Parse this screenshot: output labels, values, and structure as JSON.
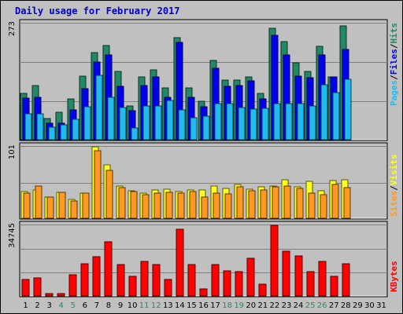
{
  "title": "Daily usage for February 2017",
  "colors": {
    "hits": "#228866",
    "files": "#0000ee",
    "pages": "#22bbee",
    "visits": "#ffff22",
    "sites": "#ff9922",
    "kbytes": "#ff0000",
    "weekend_day": "#2e8b57",
    "weekday": "#000000",
    "side_separator": "#000000"
  },
  "side_labels": {
    "top": [
      "Pages",
      "Files",
      "Hits"
    ],
    "mid": [
      "Sites",
      "Visits"
    ],
    "bottom": [
      "KBytes"
    ],
    "separator": "/"
  },
  "chart_data": [
    {
      "type": "bar",
      "name": "hits-files-pages",
      "ymax_label": "273",
      "ylim": [
        0,
        273
      ],
      "categories": [
        "1",
        "2",
        "3",
        "4",
        "5",
        "6",
        "7",
        "8",
        "9",
        "10",
        "11",
        "12",
        "13",
        "14",
        "15",
        "16",
        "17",
        "18",
        "19",
        "20",
        "21",
        "22",
        "23",
        "24",
        "25",
        "26",
        "27",
        "28",
        "29",
        "30",
        "31"
      ],
      "series": [
        {
          "name": "Hits",
          "values": [
            108,
            128,
            50,
            65,
            95,
            150,
            205,
            222,
            160,
            80,
            148,
            165,
            122,
            240,
            122,
            90,
            187,
            140,
            140,
            148,
            108,
            262,
            230,
            180,
            160,
            220,
            148,
            268,
            0,
            0,
            0
          ]
        },
        {
          "name": "Files",
          "values": [
            98,
            100,
            38,
            38,
            70,
            120,
            182,
            200,
            125,
            68,
            128,
            148,
            100,
            228,
            100,
            78,
            168,
            125,
            128,
            138,
            95,
            245,
            200,
            150,
            145,
            200,
            148,
            212,
            0,
            0,
            0
          ]
        },
        {
          "name": "Pages",
          "values": [
            60,
            60,
            30,
            35,
            48,
            78,
            152,
            100,
            75,
            28,
            80,
            80,
            92,
            70,
            52,
            55,
            84,
            84,
            76,
            72,
            74,
            84,
            84,
            84,
            80,
            130,
            110,
            142,
            0,
            0,
            0
          ]
        }
      ]
    },
    {
      "type": "bar",
      "name": "visits-sites",
      "ymax_label": "101",
      "ylim": [
        0,
        101
      ],
      "categories": [
        "1",
        "2",
        "3",
        "4",
        "5",
        "6",
        "7",
        "8",
        "9",
        "10",
        "11",
        "12",
        "13",
        "14",
        "15",
        "16",
        "17",
        "18",
        "19",
        "20",
        "21",
        "22",
        "23",
        "24",
        "25",
        "26",
        "27",
        "28",
        "29",
        "30",
        "31"
      ],
      "series": [
        {
          "name": "Visits",
          "values": [
            38,
            40,
            30,
            37,
            27,
            35,
            101,
            75,
            45,
            39,
            36,
            40,
            41,
            38,
            40,
            40,
            46,
            42,
            48,
            41,
            44,
            45,
            54,
            44,
            52,
            39,
            53,
            54,
            0,
            0,
            0
          ]
        },
        {
          "name": "Sites",
          "values": [
            35,
            45,
            30,
            37,
            24,
            35,
            95,
            68,
            43,
            38,
            33,
            35,
            37,
            35,
            38,
            30,
            35,
            34,
            44,
            39,
            40,
            44,
            46,
            42,
            35,
            33,
            48,
            43,
            0,
            0,
            0
          ]
        }
      ]
    },
    {
      "type": "bar",
      "name": "kbytes",
      "ymax_label": "34745",
      "ylim": [
        0,
        34745
      ],
      "categories": [
        "1",
        "2",
        "3",
        "4",
        "5",
        "6",
        "7",
        "8",
        "9",
        "10",
        "11",
        "12",
        "13",
        "14",
        "15",
        "16",
        "17",
        "18",
        "19",
        "20",
        "21",
        "22",
        "23",
        "24",
        "25",
        "26",
        "27",
        "28",
        "29",
        "30",
        "31"
      ],
      "series": [
        {
          "name": "KBytes",
          "values": [
            8000,
            8800,
            1000,
            1000,
            10300,
            15800,
            19200,
            26700,
            15400,
            9600,
            16900,
            15400,
            8000,
            32700,
            15600,
            3600,
            15600,
            12500,
            11900,
            18700,
            5800,
            34745,
            22100,
            19600,
            11900,
            16900,
            9600,
            15800,
            0,
            0,
            0
          ]
        }
      ]
    }
  ]
}
